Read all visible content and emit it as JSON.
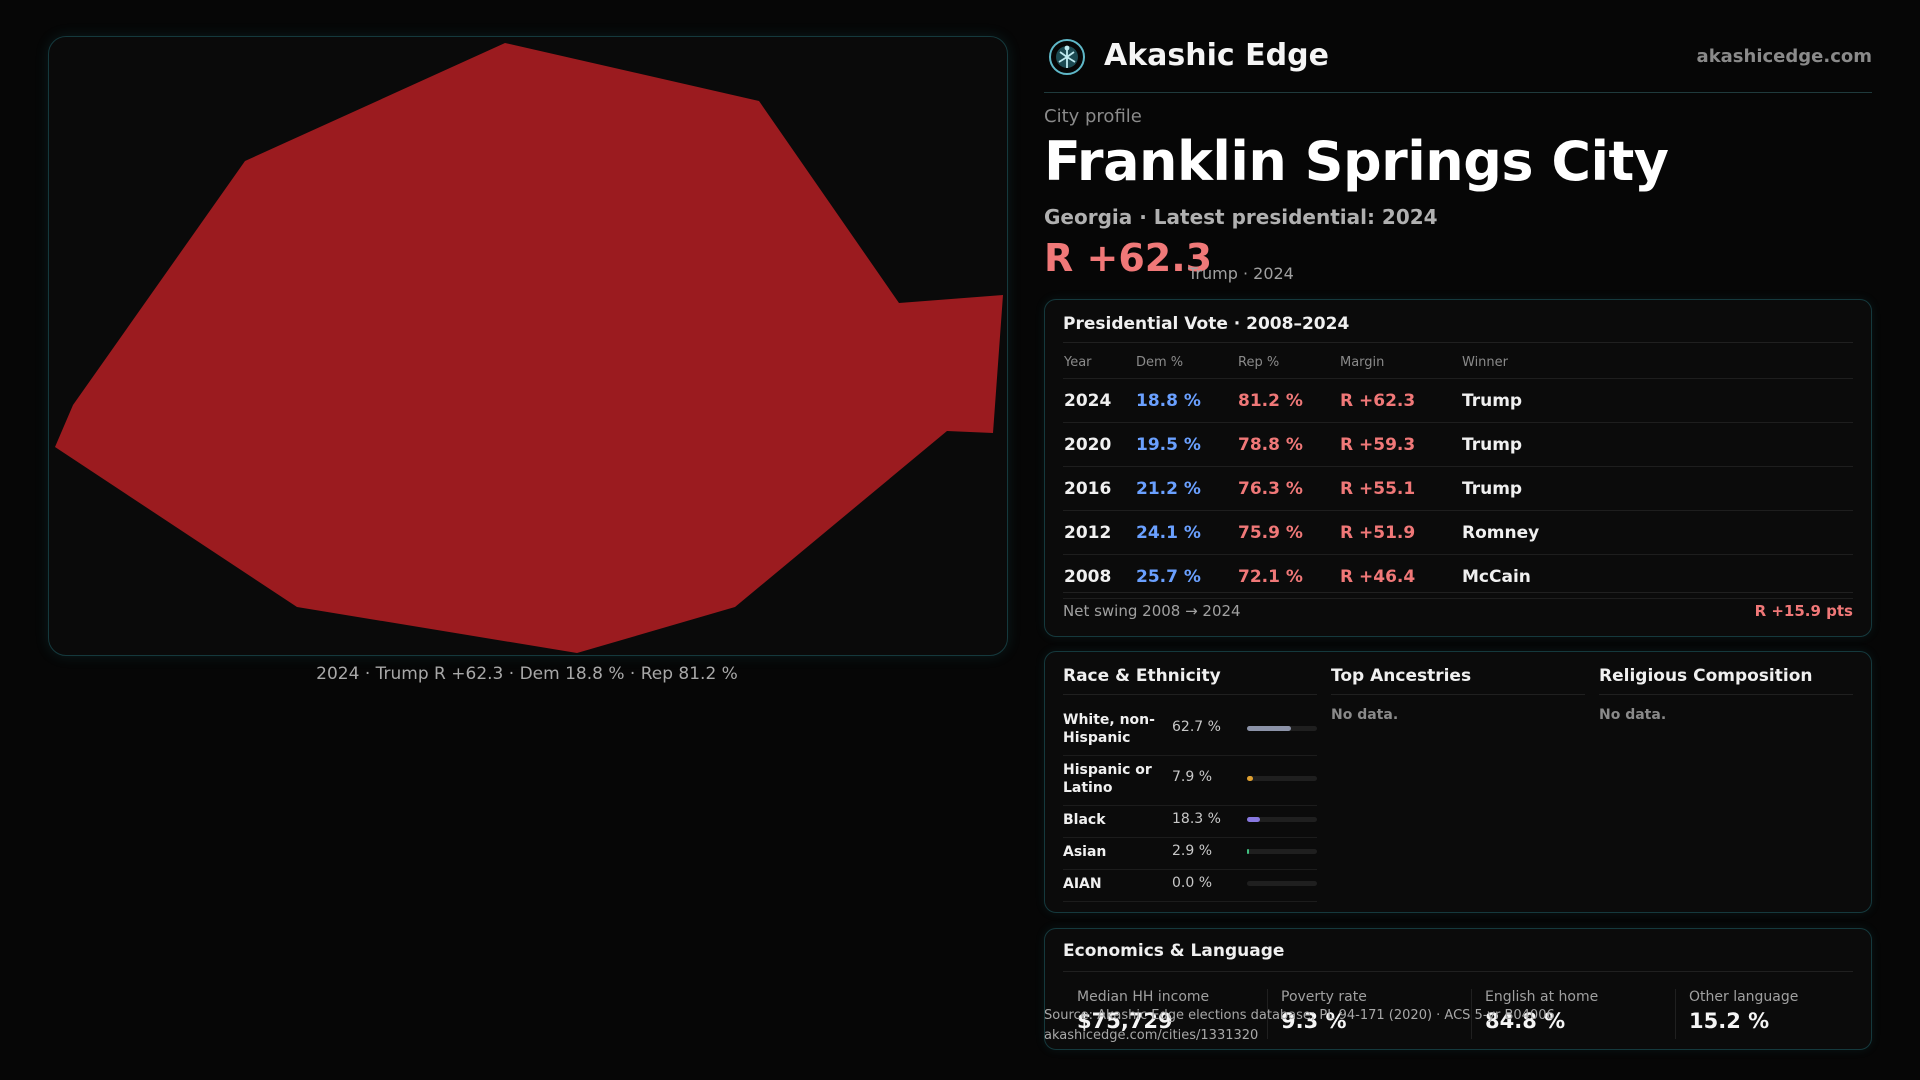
{
  "map": {
    "caption": "2024 · Trump R +62.3 · Dem 18.8 % · Rep 81.2 %",
    "fill_color": "#9b1b1f"
  },
  "brand": {
    "logo_icon": "atom-tree-icon",
    "name": "Akashic Edge",
    "url": "akashicedge.com"
  },
  "profile": {
    "kicker": "City profile",
    "city_name": "Franklin Springs City",
    "subline": "Georgia · Latest presidential: 2024",
    "margin": "R +62.3",
    "margin_note": "Trump · 2024"
  },
  "presidential": {
    "title": "Presidential Vote · 2008–2024",
    "columns": [
      "Year",
      "Dem %",
      "Rep %",
      "Margin",
      "Winner"
    ],
    "rows": [
      {
        "year": "2024",
        "dem": "18.8 %",
        "rep": "81.2 %",
        "margin": "R +62.3",
        "winner": "Trump"
      },
      {
        "year": "2020",
        "dem": "19.5 %",
        "rep": "78.8 %",
        "margin": "R +59.3",
        "winner": "Trump"
      },
      {
        "year": "2016",
        "dem": "21.2 %",
        "rep": "76.3 %",
        "margin": "R +55.1",
        "winner": "Trump"
      },
      {
        "year": "2012",
        "dem": "24.1 %",
        "rep": "75.9 %",
        "margin": "R +51.9",
        "winner": "Romney"
      },
      {
        "year": "2008",
        "dem": "25.7 %",
        "rep": "72.1 %",
        "margin": "R +46.4",
        "winner": "McCain"
      }
    ],
    "swing_label": "Net swing 2008 → 2024",
    "swing_value": "R +15.9 pts"
  },
  "demographics": {
    "race": {
      "title": "Race & Ethnicity",
      "rows": [
        {
          "label": "White, non-Hispanic",
          "pct": "62.7 %",
          "value": 62.7,
          "color": "#8c93a8"
        },
        {
          "label": "Hispanic or Latino",
          "pct": "7.9 %",
          "value": 7.9,
          "color": "#e0a030"
        },
        {
          "label": "Black",
          "pct": "18.3 %",
          "value": 18.3,
          "color": "#8878e0"
        },
        {
          "label": "Asian",
          "pct": "2.9 %",
          "value": 2.9,
          "color": "#40c080"
        },
        {
          "label": "AIAN",
          "pct": "0.0 %",
          "value": 0.0,
          "color": "#c07070"
        }
      ]
    },
    "ancestries": {
      "title": "Top Ancestries",
      "empty": "No data."
    },
    "religion": {
      "title": "Religious Composition",
      "empty": "No data."
    }
  },
  "economics": {
    "title": "Economics & Language",
    "stats": [
      {
        "label": "Median HH income",
        "value": "$75,729"
      },
      {
        "label": "Poverty rate",
        "value": "9.3 %"
      },
      {
        "label": "English at home",
        "value": "84.8 %"
      },
      {
        "label": "Other language",
        "value": "15.2 %"
      }
    ]
  },
  "source": {
    "line1": "Source: Akashic Edge elections database; PL 94-171 (2020) · ACS 5-yr B04006",
    "line2": "akashicedge.com/cities/1331320"
  }
}
